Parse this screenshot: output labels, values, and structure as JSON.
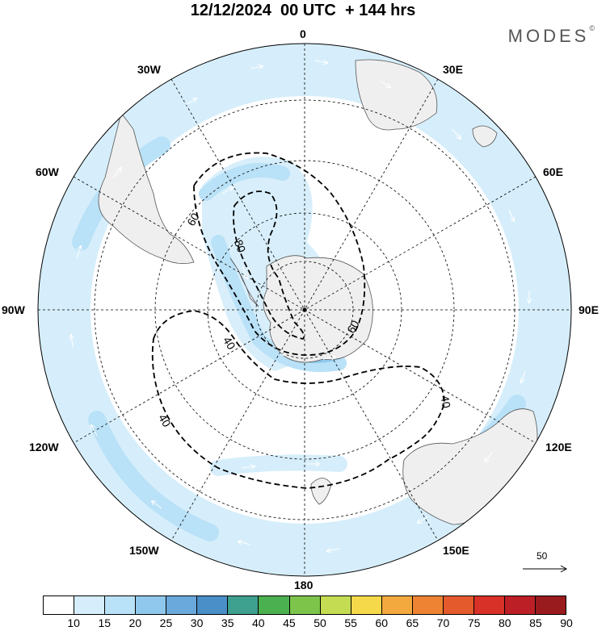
{
  "title": "12/12/2024  00 UTC  + 144 hrs",
  "brand": {
    "name": "MODES",
    "mark": "©"
  },
  "longitude_labels": [
    {
      "id": "0",
      "text": "0"
    },
    {
      "id": "30e",
      "text": "30E"
    },
    {
      "id": "60e",
      "text": "60E"
    },
    {
      "id": "90e",
      "text": "90E"
    },
    {
      "id": "120e",
      "text": "120E"
    },
    {
      "id": "150e",
      "text": "150E"
    },
    {
      "id": "180",
      "text": "180"
    },
    {
      "id": "150w",
      "text": "150W"
    },
    {
      "id": "120w",
      "text": "120W"
    },
    {
      "id": "90w",
      "text": "90W"
    },
    {
      "id": "60w",
      "text": "60W"
    },
    {
      "id": "30w",
      "text": "30W"
    }
  ],
  "contour_labels": [
    "80",
    "60",
    "60",
    "40",
    "40",
    "40"
  ],
  "reference_vector": {
    "label": "50"
  },
  "colorbar": {
    "ticks": [
      "10",
      "15",
      "20",
      "25",
      "30",
      "35",
      "40",
      "45",
      "50",
      "55",
      "60",
      "65",
      "70",
      "75",
      "80",
      "85",
      "90"
    ],
    "colors": [
      "#ffffff",
      "#d6eefb",
      "#b9e1f7",
      "#8fc8ec",
      "#6aa9dc",
      "#4a8fc8",
      "#3ea08f",
      "#4bb04f",
      "#7dc54a",
      "#c3dc52",
      "#f6d94b",
      "#f4a93e",
      "#ee8433",
      "#e55a2c",
      "#d83127",
      "#bd1f26",
      "#9a1b1e"
    ]
  }
}
